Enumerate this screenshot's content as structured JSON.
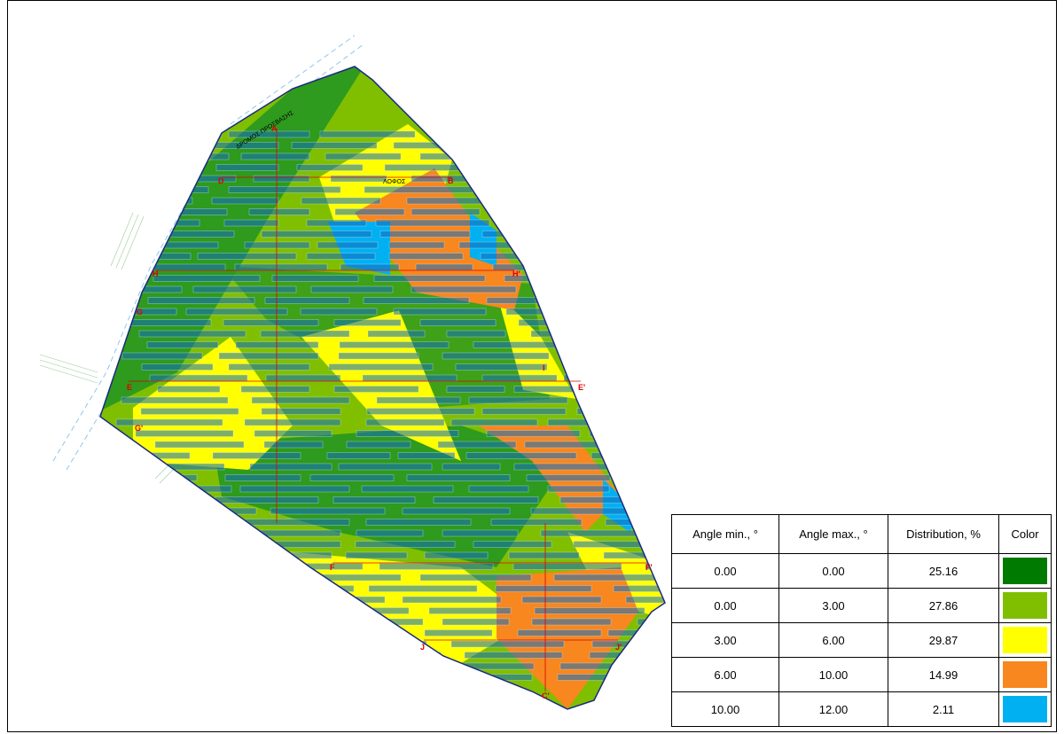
{
  "map": {
    "road_label": "ΔΡΟΜΟΣ ΠΡΟΣΒΑΣΗΣ",
    "hill_label": "ΛΟΦΟΣ",
    "section_labels": [
      "A",
      "B",
      "D",
      "H",
      "H'",
      "G",
      "I",
      "E",
      "E'",
      "G'",
      "F",
      "F'",
      "J",
      "J'",
      "C'"
    ]
  },
  "table": {
    "headers": [
      "Angle min., °",
      "Angle max., °",
      "Distribution, %",
      "Color"
    ],
    "rows": [
      [
        "0.00",
        "0.00",
        "25.16"
      ],
      [
        "0.00",
        "3.00",
        "27.86"
      ],
      [
        "3.00",
        "6.00",
        "29.87"
      ],
      [
        "6.00",
        "10.00",
        "14.99"
      ],
      [
        "10.00",
        "12.00",
        "2.11"
      ]
    ],
    "colors": [
      "#007a00",
      "#7fbf00",
      "#ffff00",
      "#f7871e",
      "#00b0f0"
    ]
  }
}
